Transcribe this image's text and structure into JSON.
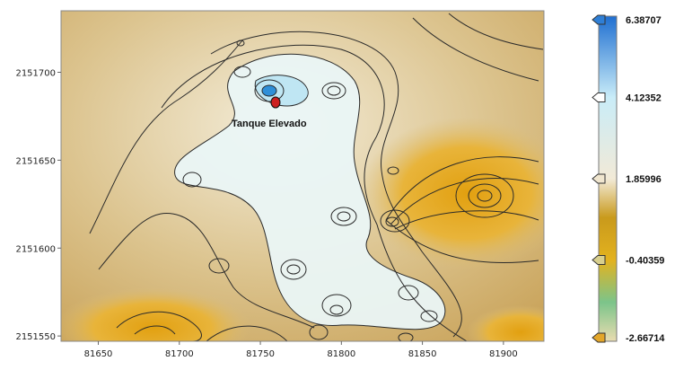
{
  "chart_data": {
    "type": "heatmap",
    "title": "",
    "xlabel": "",
    "ylabel": "",
    "xlim": [
      81627,
      81925
    ],
    "ylim": [
      2151547,
      2151735
    ],
    "x_ticks": [
      "81650",
      "81700",
      "81750",
      "81800",
      "81850",
      "81900"
    ],
    "x_tick_values": [
      81650,
      81700,
      81750,
      81800,
      81850,
      81900
    ],
    "y_ticks": [
      "2151550",
      "2151600",
      "2151650",
      "2151700"
    ],
    "y_tick_values": [
      2151550,
      2151600,
      2151650,
      2151700
    ],
    "colorbar": {
      "ticks": [
        "6.38707",
        "4.12352",
        "1.85996",
        "-0.40359",
        "-2.66714"
      ],
      "tick_values": [
        6.38707,
        4.12352,
        1.85996,
        -0.40359,
        -2.66714
      ],
      "min": -2.66714,
      "max": 6.38707,
      "colors": [
        "#1f6fd1",
        "#c9ecf8",
        "#f2ead7",
        "#c99a1c",
        "#e3b21f",
        "#7cc48a"
      ]
    },
    "annotation": {
      "label": "Tanque Elevado",
      "x": 81762,
      "y": 2151690,
      "marker_color": "#cc1f1f"
    },
    "contour_interval_note": "",
    "grid": false
  }
}
